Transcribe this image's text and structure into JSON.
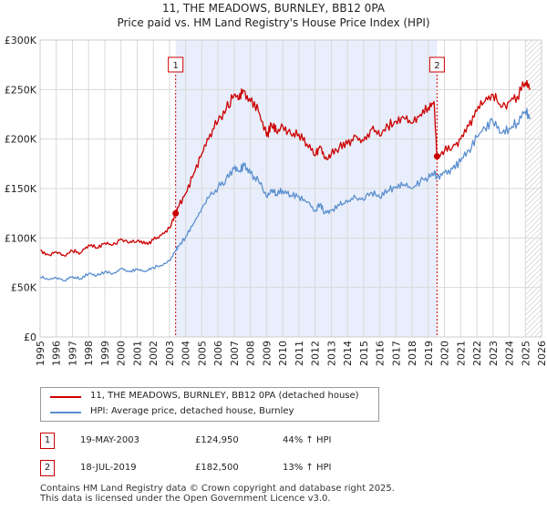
{
  "title_line1": "11, THE MEADOWS, BURNLEY, BB12 0PA",
  "title_line2": "Price paid vs. HM Land Registry's House Price Index (HPI)",
  "colors": {
    "property": "#cc0000",
    "hpi": "#5b8fcf",
    "shade": "#e8eefb",
    "grid": "#d9d9d9",
    "marker": "#cc0000"
  },
  "chart_data": {
    "type": "line",
    "title": "Price paid vs. HM Land Registry's House Price Index (HPI)",
    "xlabel": "",
    "ylabel": "",
    "xlim": [
      1995,
      2026
    ],
    "ylim": [
      0,
      300000
    ],
    "yticks": [
      {
        "value": 0,
        "label": "£0"
      },
      {
        "value": 50000,
        "label": "£50K"
      },
      {
        "value": 100000,
        "label": "£100K"
      },
      {
        "value": 150000,
        "label": "£150K"
      },
      {
        "value": 200000,
        "label": "£200K"
      },
      {
        "value": 250000,
        "label": "£250K"
      },
      {
        "value": 300000,
        "label": "£300K"
      }
    ],
    "xticks": [
      "1995",
      "1996",
      "1997",
      "1998",
      "1999",
      "2000",
      "2001",
      "2002",
      "2003",
      "2004",
      "2005",
      "2006",
      "2007",
      "2008",
      "2009",
      "2010",
      "2011",
      "2012",
      "2013",
      "2014",
      "2015",
      "2016",
      "2017",
      "2018",
      "2019",
      "2020",
      "2021",
      "2022",
      "2023",
      "2024",
      "2025",
      "2026"
    ],
    "shaded_region": [
      2003.38,
      2019.54
    ],
    "hatched_from": 2025.0,
    "series": [
      {
        "name": "11, THE MEADOWS, BURNLEY, BB12 0PA (detached house)",
        "color": "#cc0000",
        "x": [
          1995,
          1995.5,
          1996,
          1996.5,
          1997,
          1997.5,
          1998,
          1998.5,
          1999,
          1999.5,
          2000,
          2000.5,
          2001,
          2001.5,
          2002,
          2002.5,
          2003,
          2003.38,
          2003.5,
          2004,
          2004.5,
          2005,
          2005.5,
          2006,
          2006.5,
          2007,
          2007.3,
          2007.6,
          2008,
          2008.5,
          2009,
          2009.3,
          2009.6,
          2010,
          2010.5,
          2011,
          2011.5,
          2012,
          2012.3,
          2012.6,
          2013,
          2013.5,
          2014,
          2014.5,
          2015,
          2015.5,
          2016,
          2016.5,
          2017,
          2017.5,
          2018,
          2018.5,
          2019,
          2019.35,
          2019.54,
          2020,
          2020.5,
          2021,
          2021.5,
          2022,
          2022.5,
          2023,
          2023.5,
          2024,
          2024.5,
          2025,
          2025.3
        ],
        "values": [
          88000,
          83000,
          86000,
          82000,
          87000,
          85000,
          93000,
          90000,
          95000,
          93000,
          99000,
          95000,
          97000,
          94000,
          98000,
          103000,
          110000,
          124950,
          130000,
          145000,
          165000,
          185000,
          205000,
          218000,
          230000,
          245000,
          240000,
          249000,
          238000,
          228000,
          203000,
          215000,
          208000,
          213000,
          205000,
          205000,
          195000,
          183000,
          193000,
          180000,
          185000,
          192000,
          195000,
          203000,
          198000,
          210000,
          203000,
          213000,
          218000,
          221000,
          216000,
          225000,
          232000,
          238000,
          182500,
          188000,
          192000,
          200000,
          213000,
          228000,
          238000,
          245000,
          232000,
          238000,
          243000,
          257000,
          250000
        ]
      },
      {
        "name": "HPI: Average price, detached house, Burnley",
        "color": "#5b8fcf",
        "x": [
          1995,
          1995.5,
          1996,
          1996.5,
          1997,
          1997.5,
          1998,
          1998.5,
          1999,
          1999.5,
          2000,
          2000.5,
          2001,
          2001.5,
          2002,
          2002.5,
          2003,
          2003.38,
          2003.5,
          2004,
          2004.5,
          2005,
          2005.5,
          2006,
          2006.5,
          2007,
          2007.3,
          2007.6,
          2008,
          2008.5,
          2009,
          2009.3,
          2009.6,
          2010,
          2010.5,
          2011,
          2011.5,
          2012,
          2012.3,
          2012.6,
          2013,
          2013.5,
          2014,
          2014.5,
          2015,
          2015.5,
          2016,
          2016.5,
          2017,
          2017.5,
          2018,
          2018.5,
          2019,
          2019.35,
          2019.54,
          2020,
          2020.5,
          2021,
          2021.5,
          2022,
          2022.5,
          2023,
          2023.5,
          2024,
          2024.5,
          2025,
          2025.3
        ],
        "values": [
          61000,
          58000,
          60000,
          57000,
          61000,
          59000,
          64000,
          62000,
          66000,
          64000,
          69000,
          66000,
          68000,
          66000,
          70000,
          72000,
          77000,
          86800,
          91000,
          101000,
          115000,
          130000,
          143000,
          151000,
          160000,
          170000,
          167000,
          173000,
          165000,
          158000,
          141000,
          149000,
          144000,
          148000,
          143000,
          142000,
          136000,
          127000,
          134000,
          125000,
          128000,
          133000,
          136000,
          141000,
          138000,
          146000,
          141000,
          148000,
          152000,
          154000,
          150000,
          157000,
          161000,
          165000,
          161500,
          166000,
          170000,
          177000,
          189000,
          202000,
          211000,
          217000,
          206000,
          211000,
          216000,
          228000,
          222000
        ]
      }
    ],
    "annotations": [
      {
        "label": "1",
        "x": 2003.38,
        "value": 124950
      },
      {
        "label": "2",
        "x": 2019.54,
        "value": 182500
      }
    ]
  },
  "legend": {
    "property_label": "11, THE MEADOWS, BURNLEY, BB12 0PA (detached house)",
    "hpi_label": "HPI: Average price, detached house, Burnley"
  },
  "transactions": [
    {
      "num": "1",
      "date": "19-MAY-2003",
      "price": "£124,950",
      "hpi": "44% ↑ HPI"
    },
    {
      "num": "2",
      "date": "18-JUL-2019",
      "price": "£182,500",
      "hpi": "13% ↑ HPI"
    }
  ],
  "footer_line1": "Contains HM Land Registry data © Crown copyright and database right 2025.",
  "footer_line2": "This data is licensed under the Open Government Licence v3.0."
}
